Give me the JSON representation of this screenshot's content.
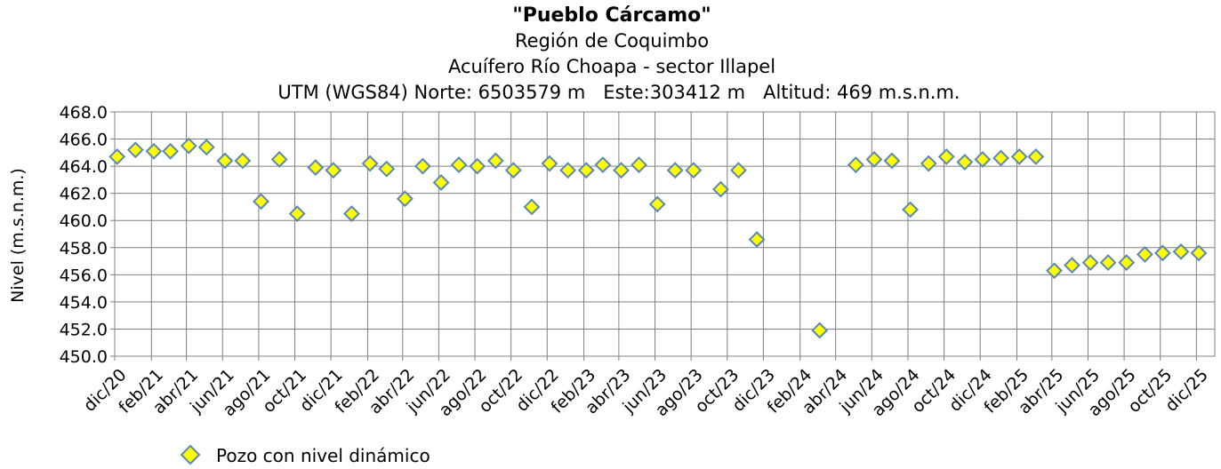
{
  "chart_data": {
    "type": "scatter",
    "title": "\"Pueblo Cárcamo\"",
    "subtitles": [
      "Región de Coquimbo",
      "Acuífero Río Choapa - sector Illapel",
      "UTM (WGS84) Norte: 6503579 m   Este:303412 m   Altitud: 469 m.s.n.m."
    ],
    "ylabel": "Nivel (m.s.n.m.)",
    "xlabel": "",
    "ylim": [
      450.0,
      468.0
    ],
    "yticks": [
      "450.0",
      "452.0",
      "454.0",
      "456.0",
      "458.0",
      "460.0",
      "462.0",
      "464.0",
      "466.0",
      "468.0"
    ],
    "xlim": [
      "2020-12-01",
      "2026-01-01"
    ],
    "xticks": [
      {
        "date": "2020-12-01",
        "label": "dic/20"
      },
      {
        "date": "2021-02-01",
        "label": "feb/21"
      },
      {
        "date": "2021-04-01",
        "label": "abr/21"
      },
      {
        "date": "2021-06-01",
        "label": "jun/21"
      },
      {
        "date": "2021-08-01",
        "label": "ago/21"
      },
      {
        "date": "2021-10-01",
        "label": "oct/21"
      },
      {
        "date": "2021-12-01",
        "label": "dic/21"
      },
      {
        "date": "2022-02-01",
        "label": "feb/22"
      },
      {
        "date": "2022-04-01",
        "label": "abr/22"
      },
      {
        "date": "2022-06-01",
        "label": "jun/22"
      },
      {
        "date": "2022-08-01",
        "label": "ago/22"
      },
      {
        "date": "2022-10-01",
        "label": "oct/22"
      },
      {
        "date": "2022-12-01",
        "label": "dic/22"
      },
      {
        "date": "2023-02-01",
        "label": "feb/23"
      },
      {
        "date": "2023-04-01",
        "label": "abr/23"
      },
      {
        "date": "2023-06-01",
        "label": "jun/23"
      },
      {
        "date": "2023-08-01",
        "label": "ago/23"
      },
      {
        "date": "2023-10-01",
        "label": "oct/23"
      },
      {
        "date": "2023-12-01",
        "label": "dic/23"
      },
      {
        "date": "2024-02-01",
        "label": "feb/24"
      },
      {
        "date": "2024-04-01",
        "label": "abr/24"
      },
      {
        "date": "2024-06-01",
        "label": "jun/24"
      },
      {
        "date": "2024-08-01",
        "label": "ago/24"
      },
      {
        "date": "2024-10-01",
        "label": "oct/24"
      },
      {
        "date": "2024-12-01",
        "label": "dic/24"
      },
      {
        "date": "2025-02-01",
        "label": "feb/25"
      },
      {
        "date": "2025-04-01",
        "label": "abr/25"
      },
      {
        "date": "2025-06-01",
        "label": "jun/25"
      },
      {
        "date": "2025-08-01",
        "label": "ago/25"
      },
      {
        "date": "2025-10-01",
        "label": "oct/25"
      },
      {
        "date": "2025-12-01",
        "label": "dic/25"
      }
    ],
    "grid": true,
    "legend_position": "bottom-left",
    "series": [
      {
        "name": "Pozo con nivel dinámico",
        "marker": "diamond",
        "fill_color": "#ffff00",
        "stroke_color": "#5b87b5",
        "points": [
          {
            "x": "2020-12-05",
            "y": 464.7
          },
          {
            "x": "2021-01-05",
            "y": 465.2
          },
          {
            "x": "2021-02-05",
            "y": 465.1
          },
          {
            "x": "2021-03-05",
            "y": 465.1
          },
          {
            "x": "2021-04-05",
            "y": 465.5
          },
          {
            "x": "2021-05-05",
            "y": 465.4
          },
          {
            "x": "2021-06-05",
            "y": 464.4
          },
          {
            "x": "2021-07-05",
            "y": 464.4
          },
          {
            "x": "2021-08-05",
            "y": 461.4
          },
          {
            "x": "2021-09-05",
            "y": 464.5
          },
          {
            "x": "2021-10-05",
            "y": 460.5
          },
          {
            "x": "2021-11-05",
            "y": 463.9
          },
          {
            "x": "2021-12-05",
            "y": 463.7
          },
          {
            "x": "2022-01-05",
            "y": 460.5
          },
          {
            "x": "2022-02-05",
            "y": 464.2
          },
          {
            "x": "2022-03-05",
            "y": 463.8
          },
          {
            "x": "2022-04-05",
            "y": 461.6
          },
          {
            "x": "2022-05-05",
            "y": 464.0
          },
          {
            "x": "2022-06-05",
            "y": 462.8
          },
          {
            "x": "2022-07-05",
            "y": 464.1
          },
          {
            "x": "2022-08-05",
            "y": 464.0
          },
          {
            "x": "2022-09-05",
            "y": 464.4
          },
          {
            "x": "2022-10-05",
            "y": 463.7
          },
          {
            "x": "2022-11-05",
            "y": 461.0
          },
          {
            "x": "2022-12-05",
            "y": 464.2
          },
          {
            "x": "2023-01-05",
            "y": 463.7
          },
          {
            "x": "2023-02-05",
            "y": 463.7
          },
          {
            "x": "2023-03-05",
            "y": 464.1
          },
          {
            "x": "2023-04-05",
            "y": 463.7
          },
          {
            "x": "2023-05-05",
            "y": 464.1
          },
          {
            "x": "2023-06-05",
            "y": 461.2
          },
          {
            "x": "2023-07-05",
            "y": 463.7
          },
          {
            "x": "2023-08-05",
            "y": 463.7
          },
          {
            "x": "2023-09-20",
            "y": 462.3
          },
          {
            "x": "2023-10-20",
            "y": 463.7
          },
          {
            "x": "2023-11-20",
            "y": 458.6
          },
          {
            "x": "2024-03-05",
            "y": 451.9
          },
          {
            "x": "2024-05-05",
            "y": 464.1
          },
          {
            "x": "2024-06-05",
            "y": 464.5
          },
          {
            "x": "2024-07-05",
            "y": 464.4
          },
          {
            "x": "2024-08-05",
            "y": 460.8
          },
          {
            "x": "2024-09-05",
            "y": 464.2
          },
          {
            "x": "2024-10-05",
            "y": 464.7
          },
          {
            "x": "2024-11-05",
            "y": 464.3
          },
          {
            "x": "2024-12-05",
            "y": 464.5
          },
          {
            "x": "2025-01-05",
            "y": 464.6
          },
          {
            "x": "2025-02-05",
            "y": 464.7
          },
          {
            "x": "2025-03-05",
            "y": 464.7
          },
          {
            "x": "2025-04-05",
            "y": 456.3
          },
          {
            "x": "2025-05-05",
            "y": 456.7
          },
          {
            "x": "2025-06-05",
            "y": 456.9
          },
          {
            "x": "2025-07-05",
            "y": 456.9
          },
          {
            "x": "2025-08-05",
            "y": 456.9
          },
          {
            "x": "2025-09-05",
            "y": 457.5
          },
          {
            "x": "2025-10-05",
            "y": 457.6
          },
          {
            "x": "2025-11-05",
            "y": 457.7
          },
          {
            "x": "2025-12-05",
            "y": 457.6
          }
        ]
      }
    ]
  }
}
